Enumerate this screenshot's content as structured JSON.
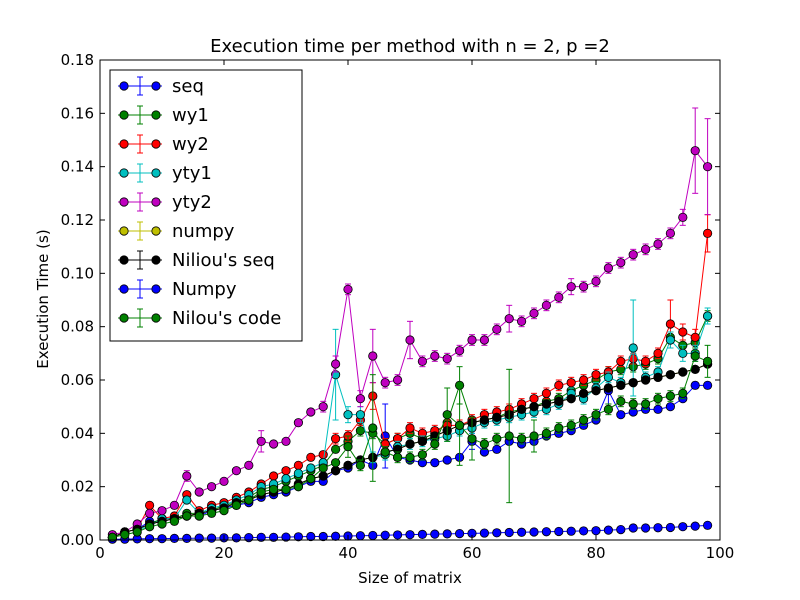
{
  "chart_data": {
    "type": "line",
    "title": "Execution time per method with n = 2, p =2",
    "xlabel": "Size of matrix",
    "ylabel": "Execution Time (s)",
    "xlim": [
      0,
      100
    ],
    "ylim": [
      0,
      0.18
    ],
    "xticks": [
      0,
      20,
      40,
      60,
      80,
      100
    ],
    "yticks": [
      0.0,
      0.02,
      0.04,
      0.06,
      0.08,
      0.1,
      0.12,
      0.14,
      0.16,
      0.18
    ],
    "xtick_labels": [
      "0",
      "20",
      "40",
      "60",
      "80",
      "100"
    ],
    "ytick_labels": [
      "0.00",
      "0.02",
      "0.04",
      "0.06",
      "0.08",
      "0.10",
      "0.12",
      "0.14",
      "0.16",
      "0.18"
    ],
    "grid": false,
    "legend_position": "top-left",
    "error_bars": true,
    "x": [
      2,
      4,
      6,
      8,
      10,
      12,
      14,
      16,
      18,
      20,
      22,
      24,
      26,
      28,
      30,
      32,
      34,
      36,
      38,
      40,
      42,
      44,
      46,
      48,
      50,
      52,
      54,
      56,
      58,
      60,
      62,
      64,
      66,
      68,
      70,
      72,
      74,
      76,
      78,
      80,
      82,
      84,
      86,
      88,
      90,
      92,
      94,
      96,
      98
    ],
    "series": [
      {
        "name": "seq",
        "color": "#0000ff",
        "values": [
          0.001,
          0.003,
          0.004,
          0.007,
          0.007,
          0.008,
          0.009,
          0.009,
          0.011,
          0.012,
          0.013,
          0.014,
          0.016,
          0.017,
          0.018,
          0.02,
          0.022,
          0.022,
          0.026,
          0.027,
          0.03,
          0.028,
          0.039,
          0.031,
          0.03,
          0.029,
          0.029,
          0.03,
          0.031,
          0.037,
          0.033,
          0.034,
          0.037,
          0.036,
          0.037,
          0.039,
          0.04,
          0.041,
          0.043,
          0.045,
          0.056,
          0.047,
          0.048,
          0.049,
          0.049,
          0.05,
          0.053,
          0.058,
          0.058
        ],
        "errors": [
          0.0005,
          0.0005,
          0.0005,
          0.0005,
          0.0005,
          0.0005,
          0.0005,
          0.0005,
          0.0005,
          0.0005,
          0.0005,
          0.0005,
          0.0005,
          0.0005,
          0.0005,
          0.0005,
          0.0005,
          0.0005,
          0.0005,
          0.0005,
          0.001,
          0.001,
          0.012,
          0.001,
          0.001,
          0.001,
          0.001,
          0.001,
          0.001,
          0.003,
          0.001,
          0.001,
          0.001,
          0.001,
          0.001,
          0.001,
          0.001,
          0.001,
          0.001,
          0.001,
          0.005,
          0.001,
          0.001,
          0.001,
          0.001,
          0.001,
          0.001,
          0.001,
          0.001
        ]
      },
      {
        "name": "wy1",
        "color": "#008000",
        "values": [
          0.001,
          0.003,
          0.004,
          0.006,
          0.008,
          0.008,
          0.01,
          0.01,
          0.011,
          0.013,
          0.014,
          0.016,
          0.019,
          0.02,
          0.022,
          0.024,
          0.026,
          0.028,
          0.034,
          0.037,
          0.041,
          0.04,
          0.036,
          0.038,
          0.04,
          0.038,
          0.04,
          0.044,
          0.058,
          0.044,
          0.045,
          0.046,
          0.048,
          0.049,
          0.05,
          0.052,
          0.053,
          0.056,
          0.058,
          0.06,
          0.063,
          0.064,
          0.065,
          0.066,
          0.068,
          0.076,
          0.073,
          0.074,
          0.084
        ],
        "errors": [
          0.0005,
          0.0005,
          0.0005,
          0.0005,
          0.0005,
          0.0005,
          0.0005,
          0.0005,
          0.0005,
          0.0005,
          0.0005,
          0.0005,
          0.0005,
          0.0005,
          0.0005,
          0.0005,
          0.0005,
          0.0005,
          0.001,
          0.002,
          0.002,
          0.002,
          0.002,
          0.002,
          0.002,
          0.002,
          0.002,
          0.002,
          0.007,
          0.002,
          0.002,
          0.002,
          0.002,
          0.002,
          0.002,
          0.002,
          0.002,
          0.002,
          0.002,
          0.002,
          0.002,
          0.002,
          0.002,
          0.002,
          0.002,
          0.002,
          0.002,
          0.002,
          0.002
        ]
      },
      {
        "name": "wy2",
        "color": "#ff0000",
        "values": [
          0.001,
          0.003,
          0.004,
          0.013,
          0.008,
          0.009,
          0.017,
          0.011,
          0.013,
          0.014,
          0.016,
          0.018,
          0.021,
          0.024,
          0.026,
          0.028,
          0.031,
          0.032,
          0.038,
          0.039,
          0.045,
          0.054,
          0.036,
          0.038,
          0.042,
          0.04,
          0.041,
          0.043,
          0.043,
          0.045,
          0.047,
          0.048,
          0.049,
          0.051,
          0.053,
          0.055,
          0.058,
          0.059,
          0.06,
          0.062,
          0.063,
          0.067,
          0.068,
          0.067,
          0.07,
          0.081,
          0.078,
          0.076,
          0.115
        ],
        "errors": [
          0.0005,
          0.0005,
          0.0005,
          0.001,
          0.0005,
          0.0005,
          0.001,
          0.0005,
          0.0005,
          0.0005,
          0.0005,
          0.0005,
          0.001,
          0.001,
          0.001,
          0.001,
          0.001,
          0.001,
          0.002,
          0.002,
          0.002,
          0.005,
          0.002,
          0.002,
          0.002,
          0.002,
          0.002,
          0.002,
          0.002,
          0.002,
          0.002,
          0.002,
          0.002,
          0.002,
          0.002,
          0.002,
          0.002,
          0.002,
          0.002,
          0.002,
          0.002,
          0.002,
          0.002,
          0.002,
          0.002,
          0.009,
          0.003,
          0.003,
          0.007
        ]
      },
      {
        "name": "yty1",
        "color": "#00bfbf",
        "values": [
          0.001,
          0.003,
          0.004,
          0.005,
          0.008,
          0.008,
          0.015,
          0.01,
          0.012,
          0.013,
          0.015,
          0.017,
          0.02,
          0.021,
          0.023,
          0.025,
          0.027,
          0.029,
          0.062,
          0.047,
          0.047,
          0.031,
          0.032,
          0.035,
          0.036,
          0.037,
          0.038,
          0.039,
          0.041,
          0.042,
          0.044,
          0.045,
          0.046,
          0.047,
          0.048,
          0.049,
          0.051,
          0.055,
          0.053,
          0.057,
          0.061,
          0.059,
          0.072,
          0.061,
          0.063,
          0.075,
          0.07,
          0.07,
          0.084
        ],
        "errors": [
          0.0005,
          0.0005,
          0.0005,
          0.0005,
          0.0005,
          0.0005,
          0.001,
          0.0005,
          0.0005,
          0.0005,
          0.0005,
          0.0005,
          0.0005,
          0.0005,
          0.0005,
          0.0005,
          0.0005,
          0.0005,
          0.017,
          0.003,
          0.003,
          0.002,
          0.002,
          0.002,
          0.002,
          0.002,
          0.002,
          0.002,
          0.002,
          0.002,
          0.002,
          0.002,
          0.002,
          0.002,
          0.002,
          0.002,
          0.002,
          0.002,
          0.002,
          0.002,
          0.002,
          0.002,
          0.018,
          0.002,
          0.002,
          0.003,
          0.003,
          0.003,
          0.003
        ]
      },
      {
        "name": "yty2",
        "color": "#bf00bf",
        "values": [
          0.002,
          0.003,
          0.006,
          0.01,
          0.011,
          0.013,
          0.024,
          0.018,
          0.02,
          0.022,
          0.026,
          0.028,
          0.037,
          0.036,
          0.037,
          0.044,
          0.048,
          0.05,
          0.066,
          0.094,
          0.053,
          0.069,
          0.059,
          0.06,
          0.075,
          0.067,
          0.069,
          0.068,
          0.071,
          0.075,
          0.075,
          0.079,
          0.083,
          0.082,
          0.085,
          0.088,
          0.091,
          0.095,
          0.095,
          0.097,
          0.102,
          0.104,
          0.107,
          0.109,
          0.111,
          0.115,
          0.121,
          0.146,
          0.14
        ],
        "errors": [
          0.0005,
          0.0005,
          0.0005,
          0.001,
          0.001,
          0.001,
          0.002,
          0.001,
          0.001,
          0.001,
          0.001,
          0.001,
          0.004,
          0.001,
          0.001,
          0.001,
          0.001,
          0.002,
          0.003,
          0.002,
          0.003,
          0.01,
          0.002,
          0.002,
          0.007,
          0.002,
          0.002,
          0.002,
          0.002,
          0.002,
          0.002,
          0.002,
          0.005,
          0.002,
          0.002,
          0.002,
          0.002,
          0.003,
          0.002,
          0.002,
          0.002,
          0.002,
          0.002,
          0.002,
          0.002,
          0.002,
          0.003,
          0.016,
          0.018
        ]
      },
      {
        "name": "numpy",
        "color": "#bfbf00",
        "values": [
          0.001,
          0.003,
          0.004,
          0.006,
          0.007,
          0.008,
          0.009,
          0.01,
          0.011,
          0.012,
          0.014,
          0.015,
          0.017,
          0.018,
          0.019,
          0.021,
          0.023,
          0.024,
          0.026,
          0.028,
          0.03,
          0.031,
          0.033,
          0.034,
          0.036,
          0.037,
          0.039,
          0.041,
          0.043,
          0.044,
          0.045,
          0.046,
          0.047,
          0.049,
          0.05,
          0.051,
          0.052,
          0.053,
          0.055,
          0.056,
          0.057,
          0.058,
          0.059,
          0.06,
          0.061,
          0.062,
          0.063,
          0.064,
          0.066
        ],
        "errors": [
          0.0005,
          0.0005,
          0.0005,
          0.0005,
          0.0005,
          0.0005,
          0.0005,
          0.0005,
          0.0005,
          0.0005,
          0.0005,
          0.0005,
          0.0005,
          0.0005,
          0.0005,
          0.0005,
          0.0005,
          0.0005,
          0.0005,
          0.0005,
          0.0005,
          0.0005,
          0.0005,
          0.0005,
          0.0005,
          0.0005,
          0.0005,
          0.0005,
          0.0005,
          0.0005,
          0.0005,
          0.0005,
          0.0005,
          0.0005,
          0.0005,
          0.0005,
          0.0005,
          0.0005,
          0.0005,
          0.0005,
          0.0005,
          0.0005,
          0.0005,
          0.0005,
          0.0005,
          0.0005,
          0.0005,
          0.0005,
          0.0005
        ]
      },
      {
        "name": "Niliou's seq",
        "color": "#000000",
        "values": [
          0.001,
          0.003,
          0.004,
          0.006,
          0.007,
          0.008,
          0.009,
          0.01,
          0.011,
          0.012,
          0.014,
          0.015,
          0.017,
          0.018,
          0.019,
          0.021,
          0.023,
          0.024,
          0.026,
          0.028,
          0.03,
          0.031,
          0.033,
          0.034,
          0.036,
          0.037,
          0.039,
          0.041,
          0.043,
          0.044,
          0.045,
          0.046,
          0.047,
          0.049,
          0.05,
          0.051,
          0.052,
          0.053,
          0.055,
          0.056,
          0.057,
          0.058,
          0.059,
          0.06,
          0.061,
          0.062,
          0.063,
          0.064,
          0.066
        ],
        "errors": [
          0.0005,
          0.0005,
          0.0005,
          0.0005,
          0.0005,
          0.0005,
          0.0005,
          0.0005,
          0.0005,
          0.0005,
          0.0005,
          0.0005,
          0.0005,
          0.0005,
          0.0005,
          0.0005,
          0.0005,
          0.0005,
          0.0005,
          0.0005,
          0.0005,
          0.0005,
          0.0005,
          0.0005,
          0.0005,
          0.0005,
          0.0005,
          0.0005,
          0.0005,
          0.0005,
          0.0005,
          0.0005,
          0.0005,
          0.0005,
          0.0005,
          0.0005,
          0.0005,
          0.0005,
          0.0005,
          0.0005,
          0.0005,
          0.0005,
          0.0005,
          0.0005,
          0.0005,
          0.0005,
          0.0005,
          0.0005,
          0.0005
        ]
      },
      {
        "name": "Numpy",
        "color": "#0000ff",
        "values": [
          0.0003,
          0.0003,
          0.0004,
          0.0005,
          0.0005,
          0.0006,
          0.0006,
          0.0007,
          0.0007,
          0.0008,
          0.0008,
          0.0009,
          0.001,
          0.001,
          0.0011,
          0.0012,
          0.0013,
          0.0013,
          0.0014,
          0.0015,
          0.0016,
          0.0017,
          0.0018,
          0.0019,
          0.002,
          0.0021,
          0.0022,
          0.0023,
          0.0024,
          0.0025,
          0.0026,
          0.0027,
          0.0028,
          0.0029,
          0.003,
          0.0031,
          0.0032,
          0.0033,
          0.0034,
          0.0035,
          0.0037,
          0.0039,
          0.0045,
          0.0045,
          0.0046,
          0.0047,
          0.005,
          0.0052,
          0.0055
        ],
        "errors": [
          0.0002,
          0.0002,
          0.0002,
          0.0002,
          0.0002,
          0.0002,
          0.0002,
          0.0002,
          0.0002,
          0.0002,
          0.0002,
          0.0002,
          0.0002,
          0.0002,
          0.0002,
          0.0002,
          0.0002,
          0.0002,
          0.0002,
          0.0002,
          0.0002,
          0.0002,
          0.0002,
          0.0002,
          0.0002,
          0.0002,
          0.0002,
          0.0002,
          0.0002,
          0.0002,
          0.0002,
          0.0002,
          0.0002,
          0.0002,
          0.0002,
          0.0002,
          0.0002,
          0.0002,
          0.0002,
          0.0002,
          0.0002,
          0.0002,
          0.0002,
          0.0002,
          0.0002,
          0.0002,
          0.0002,
          0.0002,
          0.0002
        ]
      },
      {
        "name": "Nilou's code",
        "color": "#008000",
        "values": [
          0.001,
          0.002,
          0.003,
          0.005,
          0.006,
          0.007,
          0.009,
          0.009,
          0.01,
          0.011,
          0.013,
          0.015,
          0.018,
          0.019,
          0.019,
          0.02,
          0.023,
          0.027,
          0.029,
          0.035,
          0.028,
          0.042,
          0.033,
          0.031,
          0.031,
          0.032,
          0.036,
          0.047,
          0.043,
          0.038,
          0.036,
          0.038,
          0.039,
          0.038,
          0.039,
          0.04,
          0.042,
          0.043,
          0.045,
          0.047,
          0.049,
          0.052,
          0.051,
          0.051,
          0.053,
          0.054,
          0.055,
          0.069,
          0.067
        ],
        "errors": [
          0.0005,
          0.0005,
          0.0005,
          0.0005,
          0.0005,
          0.0005,
          0.0005,
          0.0005,
          0.0005,
          0.0005,
          0.0005,
          0.0005,
          0.0005,
          0.0005,
          0.0005,
          0.0005,
          0.0005,
          0.0005,
          0.0005,
          0.004,
          0.002,
          0.02,
          0.002,
          0.002,
          0.002,
          0.002,
          0.002,
          0.01,
          0.015,
          0.008,
          0.002,
          0.002,
          0.025,
          0.002,
          0.006,
          0.002,
          0.002,
          0.002,
          0.002,
          0.002,
          0.002,
          0.002,
          0.002,
          0.002,
          0.002,
          0.002,
          0.002,
          0.002,
          0.006
        ]
      }
    ]
  }
}
